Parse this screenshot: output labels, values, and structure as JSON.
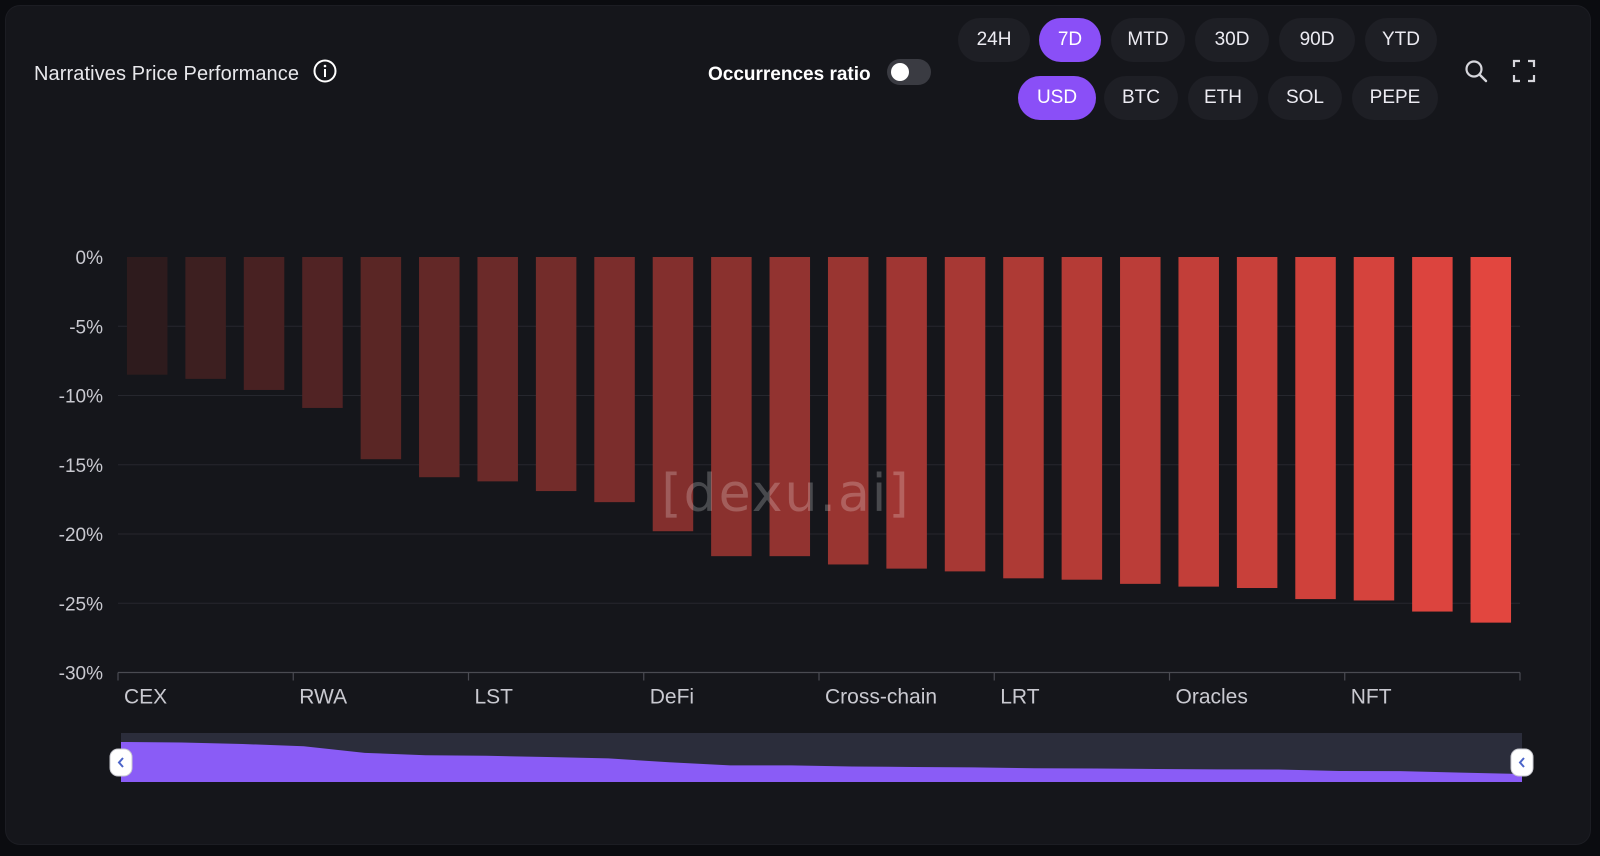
{
  "header": {
    "title": "Narratives Price Performance",
    "occurrences_label": "Occurrences ratio",
    "occurrences_enabled": false
  },
  "timeframes": {
    "items": [
      "24H",
      "7D",
      "MTD",
      "30D",
      "90D",
      "YTD"
    ],
    "selected": "7D"
  },
  "currencies": {
    "items": [
      "USD",
      "BTC",
      "ETH",
      "SOL",
      "PEPE"
    ],
    "selected": "USD"
  },
  "tools": {
    "search_icon": "search-icon",
    "fullscreen_icon": "fullscreen-icon"
  },
  "watermark": "[dexu.ai]",
  "colors": {
    "accent": "#8a4ff7",
    "bar_dark": "#2e1b1d",
    "bar_bright": "#e2463f",
    "panel_bg": "#15161b"
  },
  "chart_data": {
    "type": "bar",
    "values": [
      -8.5,
      -8.8,
      -9.6,
      -10.9,
      -14.6,
      -15.9,
      -16.2,
      -16.9,
      -17.7,
      -19.8,
      -21.6,
      -21.6,
      -22.2,
      -22.5,
      -22.7,
      -23.2,
      -23.3,
      -23.6,
      -23.8,
      -23.9,
      -24.7,
      -24.8,
      -25.6,
      -26.4
    ],
    "x_tick_labels": [
      "CEX",
      "RWA",
      "LST",
      "DeFi",
      "Cross-chain",
      "LRT",
      "Oracles",
      "NFT"
    ],
    "y_ticks": [
      "0%",
      "-5%",
      "-10%",
      "-15%",
      "-20%",
      "-25%",
      "-30%"
    ],
    "ylim": [
      -30,
      0
    ],
    "grid": true,
    "legend": "none",
    "xlabel": "",
    "ylabel": "",
    "title": "Narratives Price Performance"
  }
}
